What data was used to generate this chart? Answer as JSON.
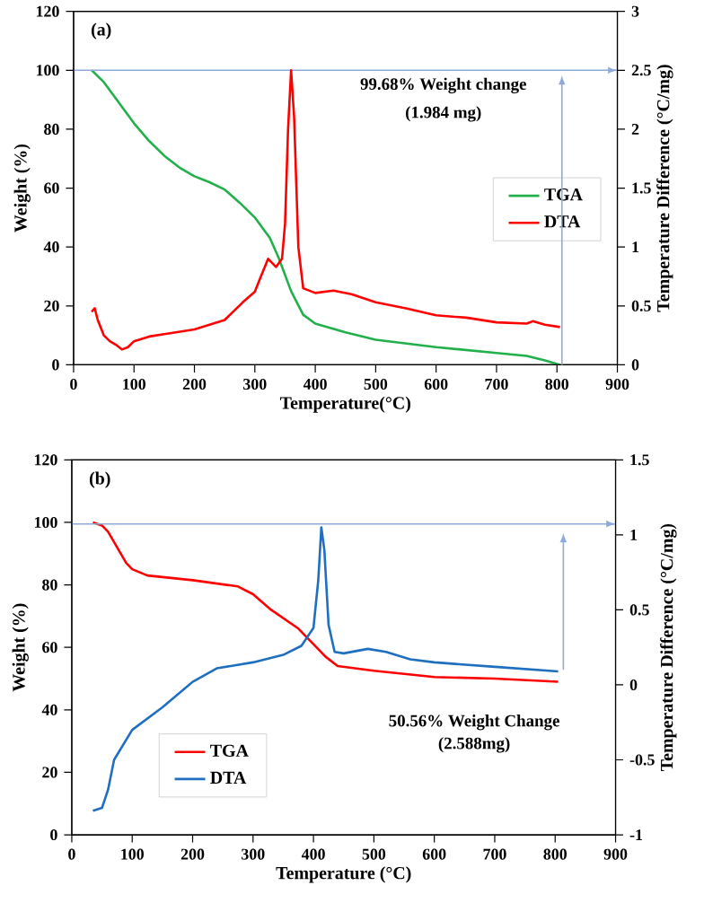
{
  "chart_data": [
    {
      "type": "line",
      "title": "(a)",
      "xlabel": "Temperature(°C)",
      "ylabel": "Weight (%)",
      "y2label": "Temperature  Difference (°C/mg)",
      "xlim": [
        0,
        900
      ],
      "xticks": [
        0,
        100,
        200,
        300,
        400,
        500,
        600,
        700,
        800,
        900
      ],
      "ylim": [
        0,
        120
      ],
      "yticks": [
        0,
        20,
        40,
        60,
        80,
        100,
        120
      ],
      "y2lim": [
        0,
        3
      ],
      "y2ticks": [
        0,
        0.5,
        1,
        1.5,
        2,
        2.5,
        3
      ],
      "legend": "right",
      "marker": "none",
      "line_style": "solid",
      "annotations": [
        "99.68% Weight change",
        "(1.984 mg)"
      ],
      "ref_lines": [
        {
          "axis": "y",
          "value": 100,
          "color": "#8eaadb"
        }
      ],
      "series": [
        {
          "name": "TGA",
          "color": "#22b04b",
          "x": [
            30,
            50,
            75,
            100,
            125,
            150,
            175,
            200,
            225,
            250,
            275,
            300,
            325,
            340,
            360,
            380,
            400,
            450,
            500,
            600,
            700,
            750,
            780,
            805
          ],
          "values": [
            100,
            96,
            89,
            82,
            76,
            71,
            67,
            64,
            62,
            59.5,
            55,
            50,
            43,
            36,
            25,
            17,
            14,
            11,
            8.5,
            6,
            4,
            3,
            1.5,
            0
          ]
        },
        {
          "name": "DTA",
          "color": "#ff0000",
          "axis": "y2",
          "x": [
            30,
            35,
            40,
            50,
            60,
            70,
            80,
            90,
            100,
            125,
            150,
            200,
            250,
            280,
            300,
            310,
            322,
            335,
            345,
            350,
            355,
            360,
            365,
            372,
            380,
            400,
            430,
            460,
            500,
            550,
            600,
            650,
            700,
            750,
            760,
            780,
            805
          ],
          "values": [
            0.45,
            0.48,
            0.38,
            0.25,
            0.2,
            0.17,
            0.13,
            0.15,
            0.2,
            0.24,
            0.26,
            0.3,
            0.38,
            0.53,
            0.62,
            0.75,
            0.9,
            0.83,
            0.9,
            1.2,
            2.0,
            2.5,
            2.1,
            1.0,
            0.65,
            0.61,
            0.63,
            0.6,
            0.53,
            0.48,
            0.42,
            0.4,
            0.36,
            0.35,
            0.37,
            0.34,
            0.32
          ]
        }
      ]
    },
    {
      "type": "line",
      "title": "(b)",
      "xlabel": "Temperature (°C)",
      "ylabel": "Weight (%)",
      "y2label": "Temperature  Difference (°C/mg)",
      "xlim": [
        0,
        900
      ],
      "xticks": [
        0,
        100,
        200,
        300,
        400,
        500,
        600,
        700,
        800,
        900
      ],
      "ylim": [
        0,
        120
      ],
      "yticks": [
        0,
        20,
        40,
        60,
        80,
        100,
        120
      ],
      "y2lim": [
        -1,
        1.5
      ],
      "y2ticks": [
        -1,
        -0.5,
        0,
        0.5,
        1,
        1.5
      ],
      "legend": "bottom left",
      "marker": "none",
      "line_style": "solid",
      "annotations": [
        "50.56% Weight Change",
        "(2.588mg)"
      ],
      "ref_lines": [
        {
          "axis": "y",
          "value": 99.5,
          "color": "#8eaadb"
        }
      ],
      "series": [
        {
          "name": "TGA",
          "color": "#ff0000",
          "x": [
            35,
            50,
            60,
            75,
            90,
            100,
            125,
            200,
            275,
            300,
            330,
            375,
            400,
            420,
            440,
            500,
            600,
            700,
            805
          ],
          "values": [
            100,
            99,
            97,
            92,
            87,
            85,
            83,
            81.5,
            79.5,
            77,
            72,
            66,
            61,
            57,
            54,
            52.5,
            50.5,
            50,
            49
          ]
        },
        {
          "name": "DTA",
          "color": "#1f6fc0",
          "axis": "y2",
          "x": [
            35,
            50,
            60,
            70,
            100,
            150,
            200,
            240,
            300,
            350,
            380,
            400,
            408,
            413,
            418,
            425,
            435,
            450,
            490,
            520,
            560,
            600,
            700,
            805
          ],
          "values": [
            -0.84,
            -0.82,
            -0.7,
            -0.5,
            -0.3,
            -0.15,
            0.02,
            0.11,
            0.15,
            0.2,
            0.26,
            0.38,
            0.7,
            1.05,
            0.9,
            0.4,
            0.22,
            0.21,
            0.24,
            0.22,
            0.17,
            0.15,
            0.12,
            0.09
          ]
        }
      ]
    }
  ]
}
